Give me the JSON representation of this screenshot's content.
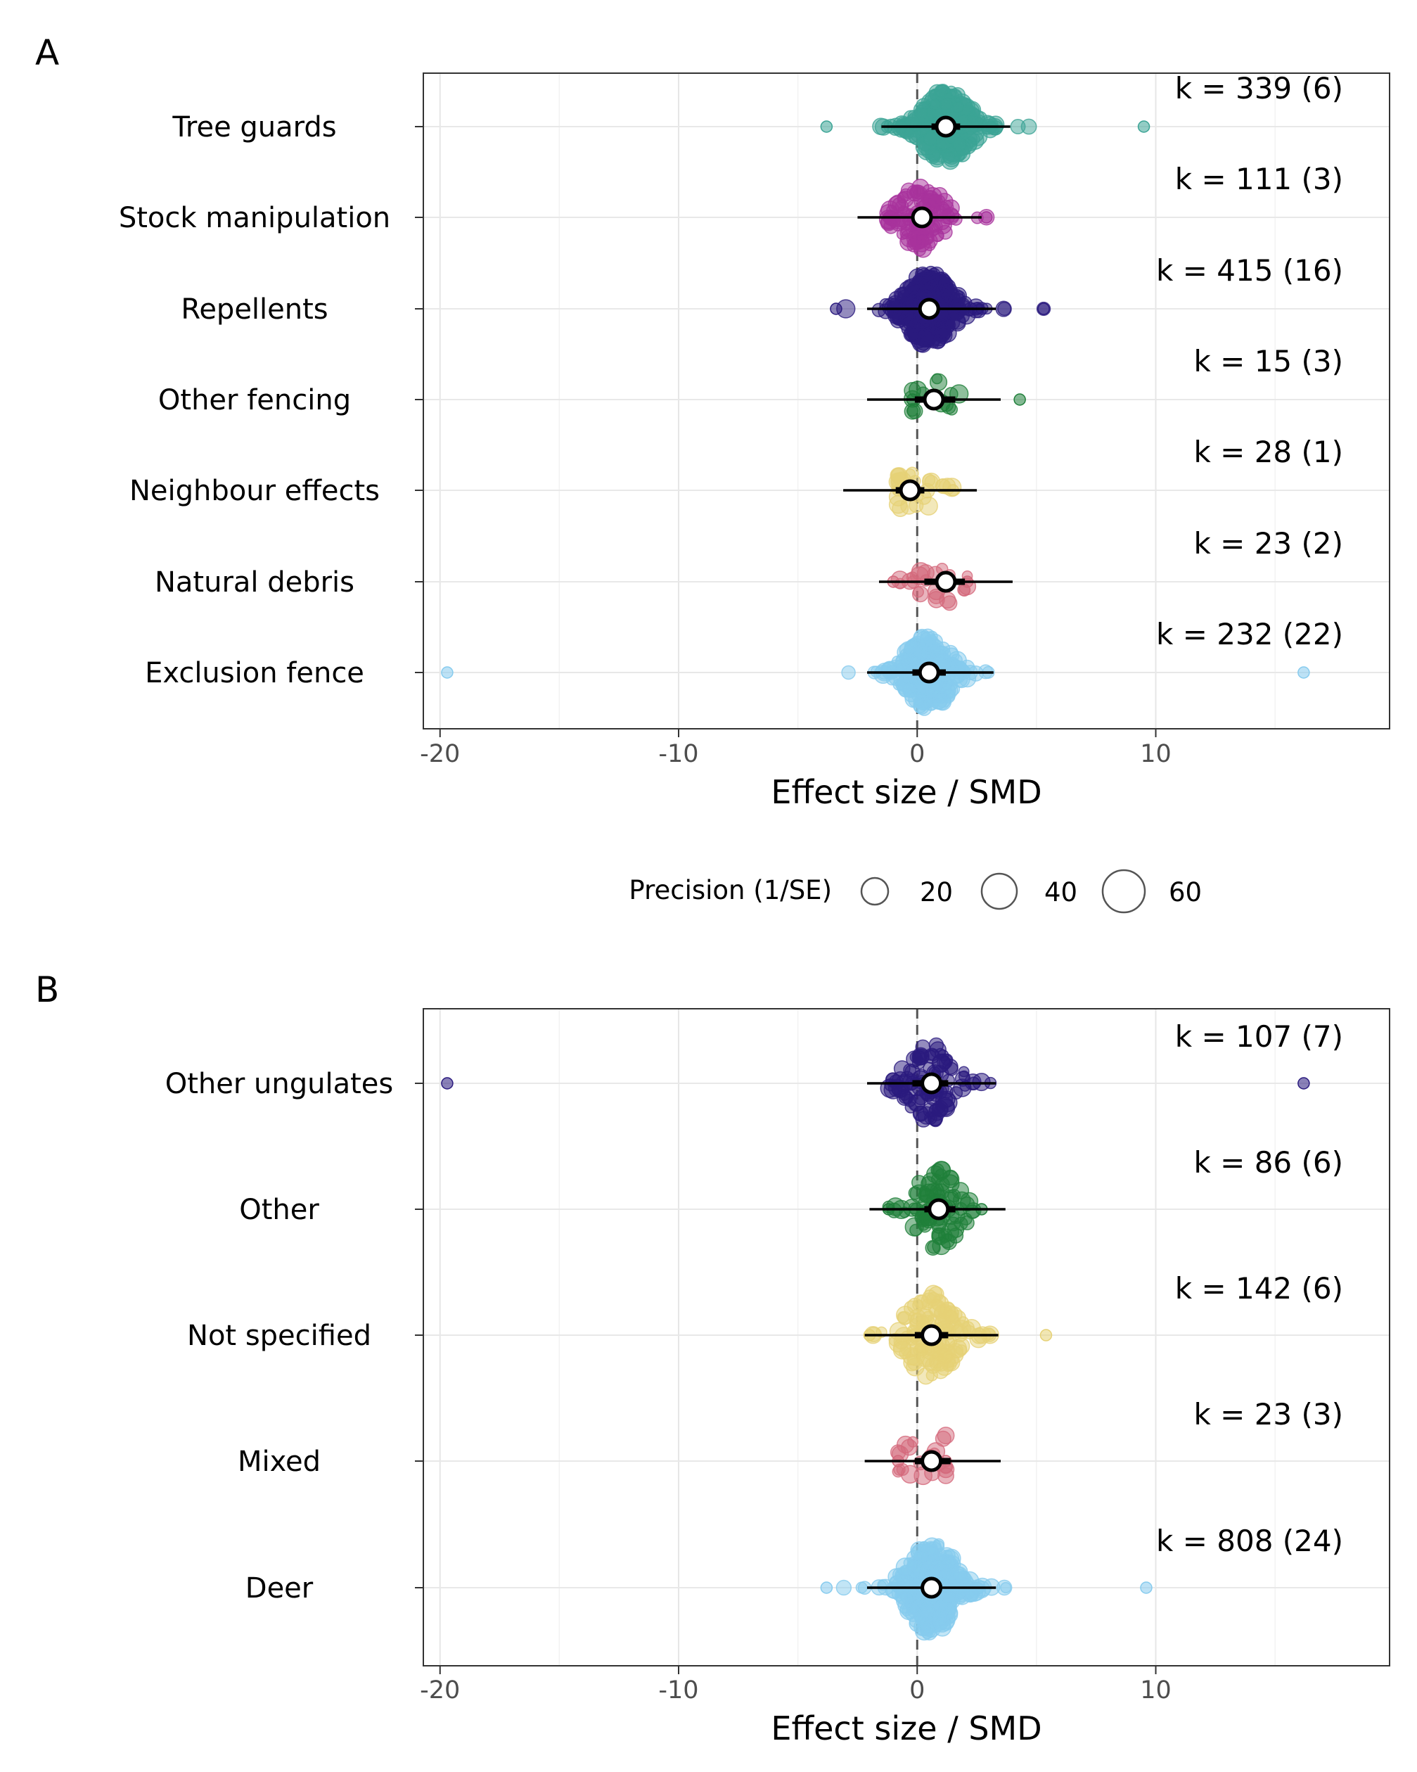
{
  "figure": {
    "legend": {
      "title": "Precision (1/SE)",
      "entries": [
        {
          "label": "20",
          "value": 20
        },
        {
          "label": "40",
          "value": 40
        },
        {
          "label": "60",
          "value": 60
        }
      ]
    }
  },
  "chart_data": [
    {
      "type": "orchard",
      "panel_label": "A",
      "xlabel": "Effect size / SMD",
      "xlim": [
        -20.7,
        19.8
      ],
      "xticks": [
        -20,
        -10,
        0,
        10
      ],
      "xtick_labels": [
        "-20",
        "-10",
        "0",
        "10"
      ],
      "reference_line": 0,
      "grid": true,
      "categories": [
        {
          "name": "Tree guards",
          "k_label": "k = 339 (6)",
          "k": 339,
          "studies": 6,
          "color": "#3BA495",
          "estimate": 1.2,
          "ci": [
            0.6,
            1.8
          ],
          "pi": [
            -1.5,
            3.9
          ],
          "range": [
            -3.8,
            9.5
          ],
          "spread": 24
        },
        {
          "name": "Stock manipulation",
          "k_label": "k = 111 (3)",
          "k": 111,
          "studies": 3,
          "color": "#A8329C",
          "estimate": 0.2,
          "ci": [
            -0.2,
            0.6
          ],
          "pi": [
            -2.5,
            2.7
          ],
          "range": [
            -1.2,
            2.9
          ],
          "spread": 22
        },
        {
          "name": "Repellents",
          "k_label": "k = 415 (16)",
          "k": 415,
          "studies": 16,
          "color": "#2A1A7E",
          "estimate": 0.5,
          "ci": [
            0.1,
            0.9
          ],
          "pi": [
            -2.1,
            3.3
          ],
          "range": [
            -3.4,
            5.3
          ],
          "spread": 24
        },
        {
          "name": "Other fencing",
          "k_label": "k = 15 (3)",
          "k": 15,
          "studies": 3,
          "color": "#1F7F3A",
          "estimate": 0.7,
          "ci": [
            -0.1,
            1.6
          ],
          "pi": [
            -2.1,
            3.5
          ],
          "range": [
            -0.2,
            4.3
          ],
          "spread": 14
        },
        {
          "name": "Neighbour effects",
          "k_label": "k = 28 (1)",
          "k": 28,
          "studies": 1,
          "color": "#E6D175",
          "estimate": -0.3,
          "ci": [
            -0.9,
            0.3
          ],
          "pi": [
            -3.1,
            2.5
          ],
          "range": [
            -0.8,
            1.5
          ],
          "spread": 16
        },
        {
          "name": "Natural debris",
          "k_label": "k = 23 (2)",
          "k": 23,
          "studies": 2,
          "color": "#D4697C",
          "estimate": 1.2,
          "ci": [
            0.3,
            2.0
          ],
          "pi": [
            -1.6,
            4.0
          ],
          "range": [
            -1.0,
            2.1
          ],
          "spread": 16
        },
        {
          "name": "Exclusion fence",
          "k_label": "k = 232 (22)",
          "k": 232,
          "studies": 22,
          "color": "#86CBEE",
          "estimate": 0.5,
          "ci": [
            -0.2,
            1.2
          ],
          "pi": [
            -2.1,
            3.2
          ],
          "range": [
            -19.7,
            16.2
          ],
          "spread": 24
        }
      ]
    },
    {
      "type": "orchard",
      "panel_label": "B",
      "xlabel": "Effect size / SMD",
      "xlim": [
        -20.7,
        19.8
      ],
      "xticks": [
        -20,
        -10,
        0,
        10
      ],
      "xtick_labels": [
        "-20",
        "-10",
        "0",
        "10"
      ],
      "reference_line": 0,
      "grid": true,
      "categories": [
        {
          "name": "Other ungulates",
          "k_label": "k = 107 (7)",
          "k": 107,
          "studies": 7,
          "color": "#2A1A7E",
          "estimate": 0.6,
          "ci": [
            -0.2,
            1.3
          ],
          "pi": [
            -2.1,
            3.3
          ],
          "range": [
            -19.7,
            16.2
          ],
          "spread": 26
        },
        {
          "name": "Other",
          "k_label": "k = 86 (6)",
          "k": 86,
          "studies": 6,
          "color": "#1F7F3A",
          "estimate": 0.9,
          "ci": [
            0.3,
            1.6
          ],
          "pi": [
            -2.0,
            3.7
          ],
          "range": [
            -1.2,
            2.7
          ],
          "spread": 26
        },
        {
          "name": "Not specified",
          "k_label": "k = 142 (6)",
          "k": 142,
          "studies": 6,
          "color": "#E6D175",
          "estimate": 0.6,
          "ci": [
            -0.1,
            1.3
          ],
          "pi": [
            -2.2,
            3.4
          ],
          "range": [
            -2.0,
            5.4
          ],
          "spread": 28
        },
        {
          "name": "Mixed",
          "k_label": "k = 23 (3)",
          "k": 23,
          "studies": 3,
          "color": "#D4697C",
          "estimate": 0.6,
          "ci": [
            -0.1,
            1.4
          ],
          "pi": [
            -2.2,
            3.5
          ],
          "range": [
            -0.8,
            1.2
          ],
          "spread": 22
        },
        {
          "name": "Deer",
          "k_label": "k = 808 (24)",
          "k": 808,
          "studies": 24,
          "color": "#86CBEE",
          "estimate": 0.6,
          "ci": [
            0.3,
            0.9
          ],
          "pi": [
            -2.1,
            3.3
          ],
          "range": [
            -3.8,
            9.6
          ],
          "spread": 30
        }
      ]
    }
  ]
}
